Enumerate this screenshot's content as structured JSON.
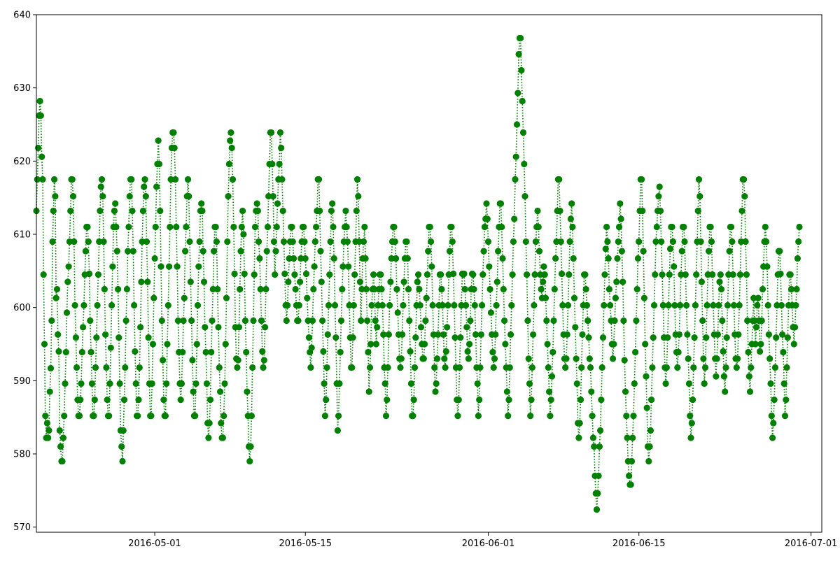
{
  "chart_data": {
    "type": "line",
    "title": "",
    "xlabel": "",
    "ylabel": "",
    "x_type": "date",
    "xlim": [
      "2016-04-20",
      "2016-07-02"
    ],
    "ylim": [
      569.3,
      640.0
    ],
    "x_ticks": [
      "2016-05-01",
      "2016-05-15",
      "2016-06-01",
      "2016-06-15",
      "2016-07-01"
    ],
    "y_ticks": [
      570,
      580,
      590,
      600,
      610,
      620,
      630,
      640
    ],
    "grid": false,
    "legend": "none",
    "series": [
      {
        "color": "#008000",
        "line_style": "dotted",
        "marker": "circle",
        "sampling": "hourly",
        "start": "2016-04-20 00:00",
        "note": "values estimated from gridlines, ~12 per day",
        "values": [
          613.2,
          617.5,
          621.8,
          626.2,
          628.2,
          626.2,
          620.6,
          617.5,
          604.5,
          595.0,
          585.2,
          582.2,
          584.2,
          582.2,
          583.2,
          588.5,
          591.7,
          598.2,
          609.0,
          613.2,
          617.5,
          615.2,
          601.3,
          602.5,
          596.3,
          594.0,
          583.2,
          581.0,
          579.0,
          579.0,
          582.2,
          585.2,
          589.6,
          593.9,
          599.3,
          603.5,
          605.6,
          609.0,
          613.2,
          617.5,
          617.5,
          615.2,
          609.0,
          600.3,
          595.9,
          591.8,
          587.4,
          585.2,
          585.2,
          587.4,
          589.6,
          593.9,
          597.3,
          600.3,
          604.5,
          607.7,
          611.0,
          611.0,
          609.0,
          604.6,
          598.2,
          593.9,
          589.6,
          585.2,
          585.2,
          587.4,
          591.8,
          595.9,
          600.3,
          604.5,
          609.0,
          613.2,
          616.5,
          617.5,
          615.2,
          609.0,
          602.5,
          596.3,
          591.8,
          587.4,
          585.2,
          585.2,
          589.6,
          594.5,
          600.3,
          605.6,
          611.0,
          613.2,
          614.2,
          611.0,
          607.7,
          602.5,
          595.9,
          589.6,
          583.2,
          581.0,
          579.0,
          583.2,
          587.4,
          591.8,
          598.2,
          602.5,
          607.7,
          611.0,
          615.2,
          617.5,
          617.5,
          613.2,
          607.7,
          600.3,
          594.0,
          589.6,
          585.2,
          585.2,
          587.4,
          591.8,
          597.3,
          603.5,
          609.0,
          613.2,
          616.5,
          617.5,
          615.2,
          609.0,
          603.5,
          595.9,
          589.6,
          585.2,
          585.2,
          589.6,
          595.0,
          601.3,
          606.7,
          611.0,
          616.5,
          619.6,
          622.8,
          619.6,
          613.2,
          605.6,
          598.2,
          592.8,
          587.4,
          585.2,
          585.2,
          589.6,
          595.0,
          600.3,
          605.6,
          611.0,
          617.5,
          621.8,
          623.9,
          623.9,
          621.8,
          617.5,
          611.0,
          605.6,
          598.2,
          593.9,
          589.6,
          587.4,
          589.6,
          593.9,
          598.2,
          601.3,
          607.7,
          611.0,
          615.2,
          617.5,
          615.2,
          609.0,
          603.5,
          598.2,
          592.8,
          588.5,
          585.2,
          585.2,
          589.6,
          595.0,
          600.3,
          605.6,
          609.0,
          613.2,
          614.2,
          613.2,
          607.7,
          603.5,
          597.3,
          593.9,
          589.6,
          584.2,
          582.2,
          584.2,
          587.4,
          593.9,
          598.2,
          602.5,
          607.7,
          611.0,
          611.0,
          609.0,
          602.5,
          597.3,
          591.8,
          588.5,
          584.2,
          582.2,
          582.2,
          585.2,
          589.6,
          595.0,
          601.3,
          609.0,
          615.2,
          619.6,
          622.8,
          623.9,
          621.8,
          617.5,
          611.0,
          604.6,
          597.3,
          593.0,
          591.8,
          592.8,
          597.3,
          602.5,
          607.7,
          611.0,
          613.2,
          610.0,
          604.6,
          598.2,
          593.9,
          588.5,
          585.2,
          581.0,
          579.0,
          581.0,
          585.2,
          591.8,
          598.2,
          604.5,
          611.0,
          613.2,
          614.2,
          613.2,
          609.0,
          606.7,
          602.5,
          598.2,
          594.0,
          591.8,
          592.8,
          597.3,
          602.5,
          607.7,
          611.0,
          615.2,
          619.6,
          623.9,
          623.9,
          619.6,
          615.2,
          609.0,
          604.5,
          607.7,
          611.0,
          614.2,
          617.5,
          619.6,
          623.9,
          621.8,
          617.5,
          613.2,
          609.0,
          604.6,
          600.3,
          598.2,
          600.3,
          603.5,
          606.7,
          609.0,
          611.0,
          611.0,
          609.0,
          606.7,
          604.5,
          602.5,
          600.3,
          598.2,
          598.2,
          600.3,
          603.5,
          606.7,
          609.0,
          611.0,
          611.0,
          609.0,
          606.7,
          604.6,
          601.3,
          598.2,
          595.9,
          593.9,
          591.8,
          594.5,
          598.2,
          602.5,
          605.6,
          609.0,
          611.0,
          613.2,
          617.5,
          617.5,
          613.2,
          607.7,
          603.5,
          598.2,
          594.0,
          589.6,
          585.2,
          587.4,
          591.8,
          596.3,
          600.3,
          604.5,
          609.0,
          613.2,
          614.2,
          611.0,
          606.7,
          600.3,
          595.9,
          589.6,
          583.2,
          585.2,
          589.6,
          593.9,
          598.2,
          602.5,
          605.6,
          609.0,
          611.0,
          613.2,
          611.0,
          609.0,
          605.6,
          600.3,
          595.9,
          591.8,
          591.8,
          595.9,
          600.3,
          604.5,
          609.0,
          613.2,
          617.5,
          615.2,
          609.0,
          603.5,
          598.2,
          602.5,
          606.7,
          609.0,
          611.0,
          606.7,
          602.5,
          598.2,
          593.9,
          588.5,
          591.8,
          595.0,
          600.3,
          602.5,
          604.5,
          602.5,
          598.2,
          595.0,
          597.3,
          600.3,
          602.5,
          604.5,
          604.5,
          602.5,
          600.3,
          596.3,
          591.8,
          589.6,
          585.2,
          587.4,
          591.8,
          596.3,
          600.3,
          603.5,
          606.7,
          609.0,
          611.0,
          611.0,
          609.0,
          606.7,
          602.5,
          599.3,
          596.3,
          593.0,
          591.8,
          593.0,
          596.3,
          600.3,
          603.5,
          606.7,
          609.0,
          609.0,
          606.7,
          602.5,
          598.2,
          594.0,
          589.6,
          585.2,
          585.2,
          587.4,
          591.8,
          595.9,
          600.3,
          603.5,
          604.5,
          602.5,
          600.3,
          597.3,
          595.0,
          593.0,
          593.0,
          595.0,
          598.2,
          601.3,
          604.5,
          607.7,
          611.0,
          611.0,
          609.0,
          605.6,
          600.3,
          596.3,
          591.8,
          588.5,
          589.6,
          593.0,
          596.3,
          600.3,
          604.5,
          604.5,
          602.5,
          600.3,
          596.3,
          593.0,
          591.8,
          594.0,
          597.3,
          600.3,
          604.5,
          607.7,
          611.0,
          611.0,
          609.0,
          604.6,
          600.3,
          595.9,
          591.8,
          587.4,
          585.2,
          587.4,
          591.8,
          595.9,
          600.3,
          604.6,
          604.5,
          604.6,
          602.5,
          600.3,
          597.3,
          594.0,
          593.0,
          595.0,
          598.2,
          602.5,
          604.6,
          604.5,
          602.5,
          600.3,
          596.3,
          591.8,
          589.6,
          585.2,
          587.4,
          591.8,
          596.3,
          600.3,
          604.5,
          607.7,
          611.0,
          612.1,
          614.2,
          612.1,
          609.0,
          605.6,
          602.5,
          599.3,
          596.3,
          593.9,
          591.8,
          593.0,
          596.3,
          600.3,
          603.5,
          607.7,
          611.0,
          614.2,
          614.2,
          611.0,
          606.7,
          602.5,
          598.2,
          595.0,
          591.8,
          588.5,
          585.2,
          587.4,
          591.8,
          596.3,
          600.3,
          604.5,
          609.0,
          612.1,
          617.5,
          620.6,
          625.0,
          629.3,
          634.6,
          636.8,
          636.8,
          632.4,
          628.2,
          623.9,
          619.6,
          615.2,
          609.0,
          604.5,
          598.2,
          593.0,
          589.6,
          585.2,
          587.4,
          591.8,
          596.3,
          600.3,
          604.5,
          609.0,
          611.0,
          613.2,
          611.0,
          607.7,
          604.5,
          602.5,
          601.3,
          603.5,
          605.6,
          604.5,
          601.3,
          598.2,
          595.0,
          591.8,
          588.5,
          585.2,
          587.4,
          590.6,
          593.9,
          598.2,
          602.5,
          606.7,
          609.0,
          613.2,
          617.5,
          617.5,
          613.2,
          609.0,
          604.6,
          600.3,
          596.3,
          593.0,
          591.8,
          593.0,
          596.3,
          600.3,
          604.5,
          609.0,
          612.1,
          614.2,
          611.0,
          606.7,
          601.3,
          597.3,
          593.0,
          589.6,
          584.2,
          582.2,
          584.2,
          587.4,
          591.8,
          596.3,
          600.3,
          604.5,
          604.5,
          602.5,
          600.3,
          598.2,
          595.9,
          593.0,
          591.8,
          588.5,
          585.2,
          582.2,
          581.0,
          577.0,
          574.6,
          572.4,
          574.6,
          577.0,
          581.0,
          583.2,
          587.4,
          591.8,
          595.9,
          600.3,
          604.5,
          608.0,
          611.0,
          609.0,
          606.7,
          602.5,
          600.3,
          598.2,
          595.0,
          593.0,
          595.0,
          598.2,
          601.3,
          603.5,
          606.7,
          609.0,
          611.0,
          614.2,
          612.1,
          607.7,
          603.5,
          598.2,
          592.8,
          588.5,
          585.2,
          582.2,
          579.0,
          577.0,
          575.8,
          575.8,
          579.0,
          582.2,
          585.2,
          589.6,
          593.9,
          598.2,
          602.5,
          606.7,
          609.0,
          613.2,
          617.5,
          617.5,
          613.2,
          607.7,
          601.3,
          595.0,
          590.6,
          586.3,
          581.0,
          579.0,
          581.0,
          583.2,
          587.4,
          591.8,
          595.9,
          600.3,
          604.5,
          609.0,
          611.0,
          613.2,
          615.2,
          616.5,
          613.2,
          609.0,
          604.5,
          600.3,
          595.9,
          591.8,
          589.6,
          591.8,
          595.9,
          600.3,
          604.5,
          608.0,
          611.0,
          611.0,
          609.0,
          605.6,
          600.3,
          596.3,
          593.9,
          591.8,
          593.9,
          596.3,
          600.3,
          604.5,
          607.7,
          611.0,
          611.0,
          609.0,
          604.5,
          600.3,
          596.3,
          593.0,
          589.6,
          585.2,
          582.2,
          584.2,
          587.4,
          591.8,
          595.9,
          600.3,
          604.5,
          609.0,
          613.2,
          617.5,
          615.2,
          609.0,
          603.5,
          598.2,
          593.0,
          589.6,
          591.8,
          595.9,
          600.3,
          604.5,
          607.7,
          611.0,
          611.0,
          609.0,
          604.5,
          600.3,
          596.3,
          593.0,
          590.6,
          593.0,
          596.3,
          600.3,
          603.5,
          604.5,
          602.5,
          598.2,
          594.0,
          590.6,
          588.5,
          591.8,
          595.9,
          600.3,
          604.5,
          607.7,
          611.0,
          611.0,
          609.0,
          604.5,
          600.3,
          596.3,
          593.0,
          591.8,
          593.0,
          596.3,
          600.3,
          604.5,
          609.0,
          613.2,
          617.5,
          617.5,
          615.2,
          609.0,
          604.5,
          598.2,
          593.9,
          590.6,
          588.5,
          591.8,
          595.0,
          598.2,
          601.3,
          598.2,
          595.0,
          597.3,
          600.3,
          601.3,
          598.2,
          594.0,
          595.0,
          598.2,
          602.5,
          605.6,
          609.0,
          611.0,
          609.0,
          605.6,
          600.3,
          596.3,
          593.0,
          589.6,
          585.2,
          582.2,
          584.2,
          587.4,
          591.8,
          595.9,
          600.3,
          604.5,
          607.7,
          607.7,
          604.6,
          600.3,
          596.3,
          593.9,
          589.6,
          585.2,
          587.4,
          591.8,
          595.9,
          600.3,
          604.5,
          604.5,
          602.5,
          600.3,
          597.3,
          595.0,
          597.3,
          600.3,
          602.5,
          606.7,
          609.0,
          611.0
        ]
      }
    ]
  }
}
